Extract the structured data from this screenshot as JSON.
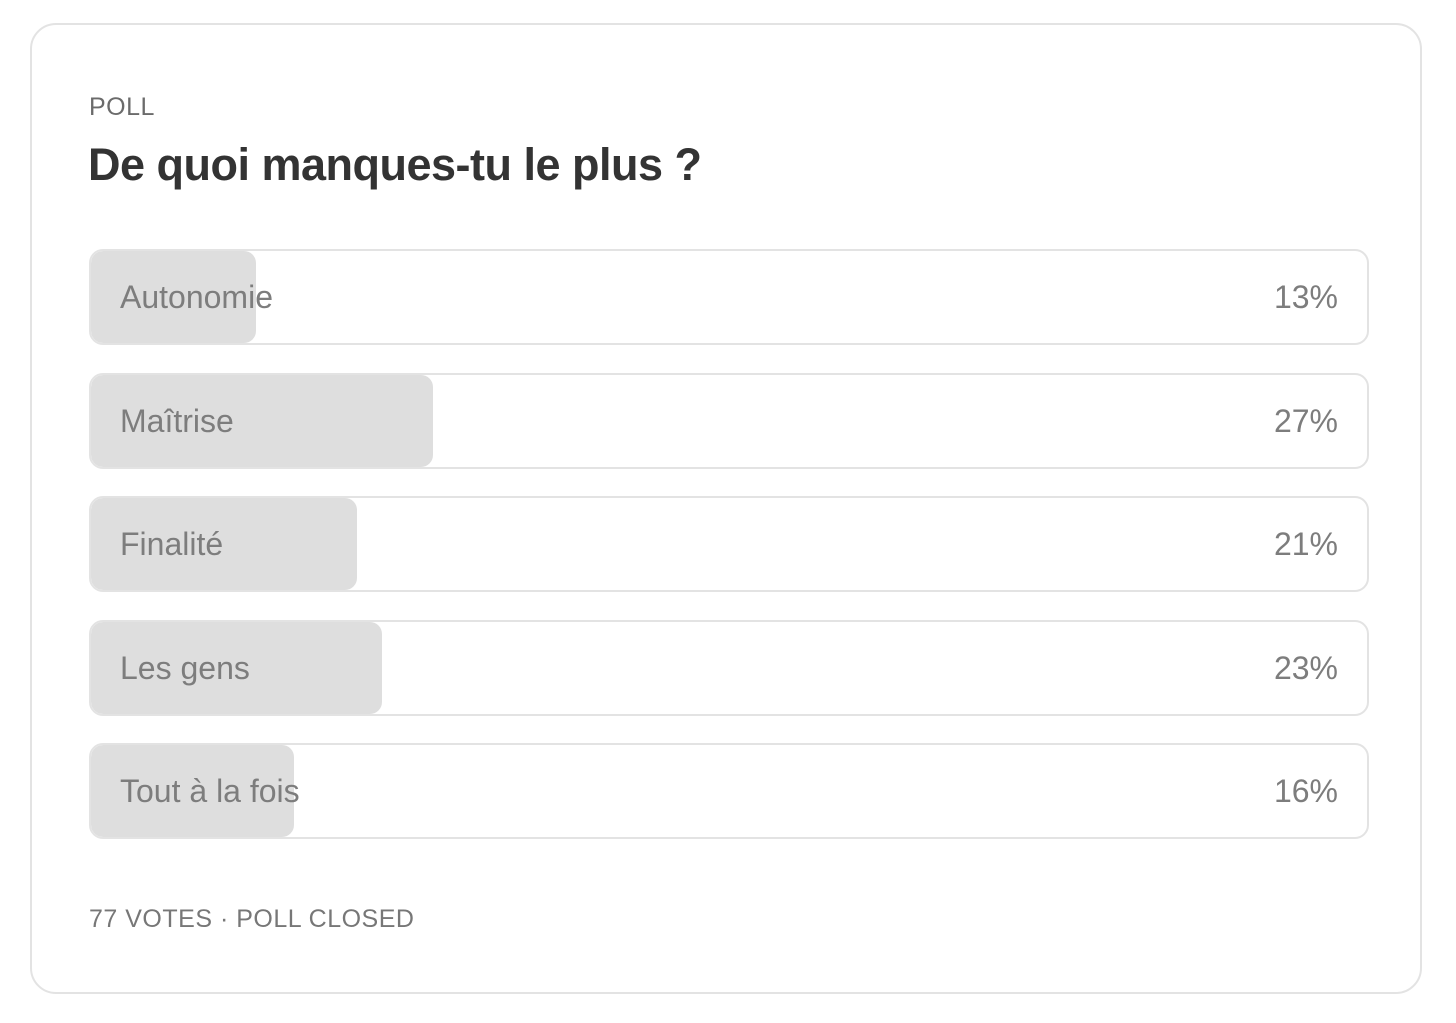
{
  "poll": {
    "kicker": "POLL",
    "question": "De quoi manques-tu le plus ?",
    "options": [
      {
        "label": "Autonomie",
        "percent_text": "13%",
        "percent": 13
      },
      {
        "label": "Maîtrise",
        "percent_text": "27%",
        "percent": 27
      },
      {
        "label": "Finalité",
        "percent_text": "21%",
        "percent": 21
      },
      {
        "label": "Les gens",
        "percent_text": "23%",
        "percent": 23
      },
      {
        "label": "Tout à la fois",
        "percent_text": "16%",
        "percent": 16
      }
    ],
    "footer": "77 VOTES · POLL CLOSED"
  },
  "colors": {
    "fill": "#dedede",
    "border": "#e3e3e3",
    "title": "#333333",
    "muted": "#7d7d7d"
  }
}
